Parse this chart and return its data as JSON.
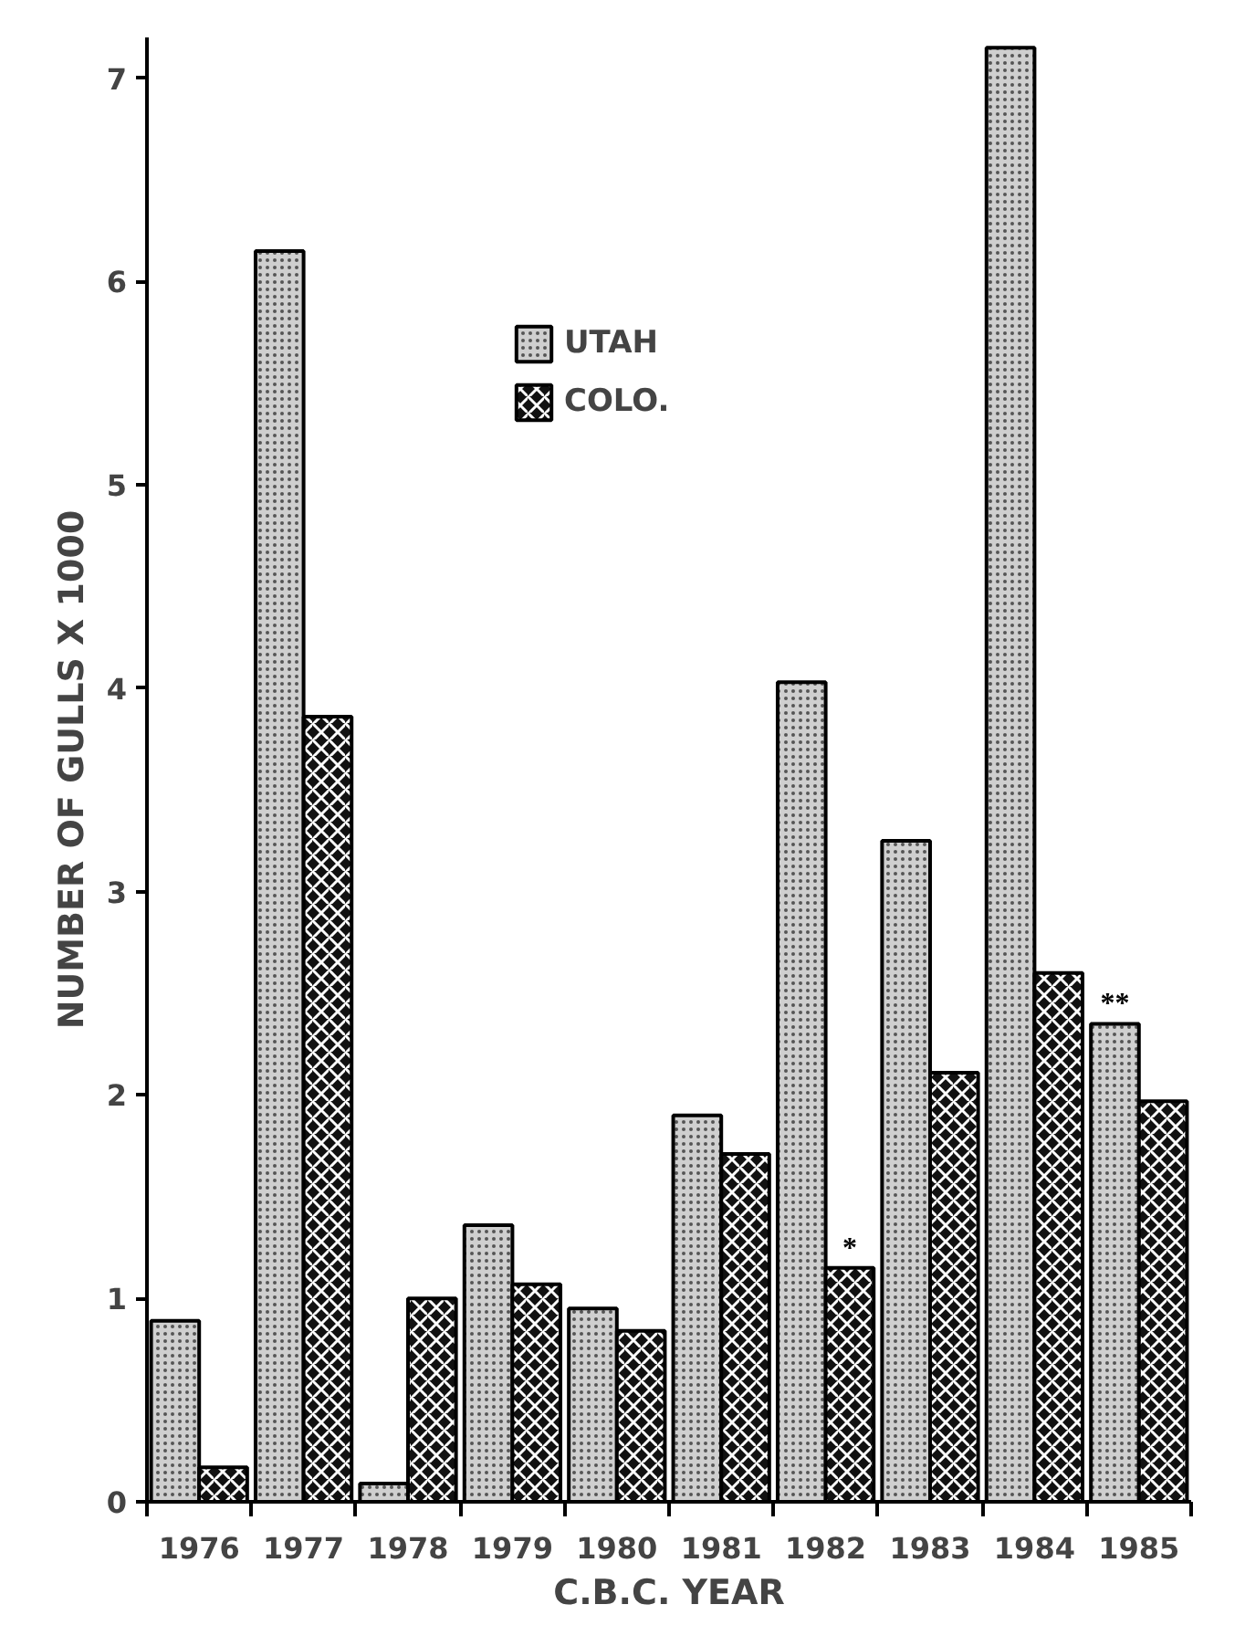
{
  "chart_data": {
    "type": "bar",
    "xlabel": "C.B.C. YEAR",
    "ylabel": "NUMBER OF GULLS X 1000",
    "categories": [
      "1976",
      "1977",
      "1978",
      "1979",
      "1980",
      "1981",
      "1982",
      "1983",
      "1984",
      "1985"
    ],
    "series": [
      {
        "name": "UTAH",
        "color": "#cfcfcf",
        "values": [
          0.89,
          6.15,
          0.09,
          1.36,
          0.95,
          1.9,
          4.03,
          3.25,
          7.15,
          2.35
        ]
      },
      {
        "name": "COLO.",
        "color": "#111111",
        "values": [
          0.17,
          3.86,
          1.0,
          1.07,
          0.84,
          1.71,
          1.15,
          2.11,
          2.6,
          1.97
        ]
      }
    ],
    "ylim": [
      0,
      7.2
    ],
    "yticks": [
      0,
      1,
      2,
      3,
      4,
      5,
      6,
      7
    ],
    "grid": false,
    "legend": "top",
    "annotations": [
      {
        "text": "*",
        "x": "1982",
        "y": 1.15
      },
      {
        "text": "**",
        "x": "1985",
        "y": 2.35
      }
    ]
  }
}
